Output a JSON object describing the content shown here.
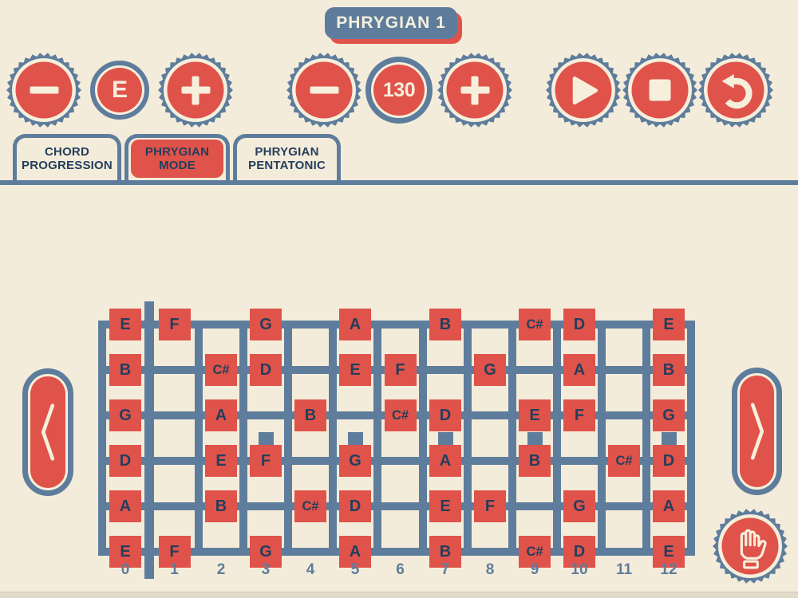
{
  "title": "PHRYGIAN 1",
  "key_control": {
    "value": "E"
  },
  "tempo_control": {
    "value": "130"
  },
  "tabs": [
    {
      "line1": "CHORD",
      "line2": "PROGRESSION",
      "active": false
    },
    {
      "line1": "PHRYGIAN",
      "line2": "MODE",
      "active": true
    },
    {
      "line1": "PHRYGIAN",
      "line2": "PENTATONIC",
      "active": false
    }
  ],
  "icons": {
    "key_minus": "minus-icon",
    "key_plus": "plus-icon",
    "tempo_minus": "minus-icon",
    "tempo_plus": "plus-icon",
    "play": "play-icon",
    "stop": "stop-icon",
    "restart": "undo-arrow-icon",
    "scroll_left": "chevron-left-icon",
    "scroll_right": "chevron-right-icon",
    "hand": "hand-icon"
  },
  "fretboard": {
    "fret_numbers": [
      "0",
      "1",
      "2",
      "3",
      "4",
      "5",
      "6",
      "7",
      "8",
      "9",
      "10",
      "11",
      "12"
    ],
    "marker_frets": [
      3,
      5,
      7,
      9,
      12
    ],
    "strings": [
      {
        "name": "string-1-high-E",
        "notes": [
          {
            "fret": 0,
            "label": "E"
          },
          {
            "fret": 1,
            "label": "F"
          },
          {
            "fret": 3,
            "label": "G"
          },
          {
            "fret": 5,
            "label": "A"
          },
          {
            "fret": 7,
            "label": "B"
          },
          {
            "fret": 9,
            "label": "C#"
          },
          {
            "fret": 10,
            "label": "D"
          },
          {
            "fret": 12,
            "label": "E"
          }
        ]
      },
      {
        "name": "string-2-B",
        "notes": [
          {
            "fret": 0,
            "label": "B"
          },
          {
            "fret": 2,
            "label": "C#"
          },
          {
            "fret": 3,
            "label": "D"
          },
          {
            "fret": 5,
            "label": "E"
          },
          {
            "fret": 6,
            "label": "F"
          },
          {
            "fret": 8,
            "label": "G"
          },
          {
            "fret": 10,
            "label": "A"
          },
          {
            "fret": 12,
            "label": "B"
          }
        ]
      },
      {
        "name": "string-3-G",
        "notes": [
          {
            "fret": 0,
            "label": "G"
          },
          {
            "fret": 2,
            "label": "A"
          },
          {
            "fret": 4,
            "label": "B"
          },
          {
            "fret": 6,
            "label": "C#"
          },
          {
            "fret": 7,
            "label": "D"
          },
          {
            "fret": 9,
            "label": "E"
          },
          {
            "fret": 10,
            "label": "F"
          },
          {
            "fret": 12,
            "label": "G"
          }
        ]
      },
      {
        "name": "string-4-D",
        "notes": [
          {
            "fret": 0,
            "label": "D"
          },
          {
            "fret": 2,
            "label": "E"
          },
          {
            "fret": 3,
            "label": "F"
          },
          {
            "fret": 5,
            "label": "G"
          },
          {
            "fret": 7,
            "label": "A"
          },
          {
            "fret": 9,
            "label": "B"
          },
          {
            "fret": 11,
            "label": "C#"
          },
          {
            "fret": 12,
            "label": "D"
          }
        ]
      },
      {
        "name": "string-5-A",
        "notes": [
          {
            "fret": 0,
            "label": "A"
          },
          {
            "fret": 2,
            "label": "B"
          },
          {
            "fret": 4,
            "label": "C#"
          },
          {
            "fret": 5,
            "label": "D"
          },
          {
            "fret": 7,
            "label": "E"
          },
          {
            "fret": 8,
            "label": "F"
          },
          {
            "fret": 10,
            "label": "G"
          },
          {
            "fret": 12,
            "label": "A"
          }
        ]
      },
      {
        "name": "string-6-low-E",
        "notes": [
          {
            "fret": 0,
            "label": "E"
          },
          {
            "fret": 1,
            "label": "F"
          },
          {
            "fret": 3,
            "label": "G"
          },
          {
            "fret": 5,
            "label": "A"
          },
          {
            "fret": 7,
            "label": "B"
          },
          {
            "fret": 9,
            "label": "C#"
          },
          {
            "fret": 10,
            "label": "D"
          },
          {
            "fret": 12,
            "label": "E"
          }
        ]
      }
    ]
  },
  "colors": {
    "background": "#f4ecda",
    "red": "#e0534a",
    "blue": "#5e7d9c",
    "navy": "#243e5d",
    "cream": "#f6efdc"
  }
}
